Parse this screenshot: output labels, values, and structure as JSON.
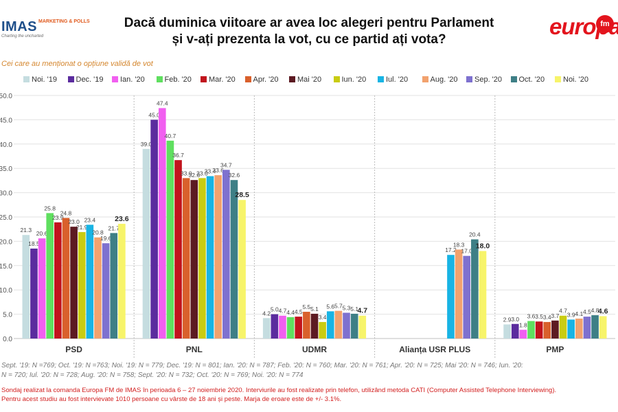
{
  "header": {
    "title_line1": "Dacă duminica viitoare ar avea loc alegeri pentru Parlament",
    "title_line2": "și v-ați prezenta la vot, cu ce partid ați vota?",
    "logo_left": "IMAS",
    "logo_left_sub": "MARKETING & POLLS",
    "logo_left_tagline": "Charting the uncharted",
    "logo_right": "europa",
    "logo_right_badge": "fm"
  },
  "subtitle": "Cei care au menționat o opțiune validă de vot",
  "footnote_lines": [
    "Sept. '19: N =769; Oct. '19: N =763; Noi. '19: N = 779; Dec. '19: N = 801; Ian. '20: N = 787; Feb. '20: N = 760; Mar. '20: N = 761; Apr. '20: N = 725; Mai '20: N = 746; Iun. '20:",
    "N = 720; Iul. '20: N = 728; Aug. '20: N = 758; Sept. '20: N = 732; Oct. '20: N = 769; Noi. '20: N = 774"
  ],
  "source_lines": [
    "Sondaj realizat la comanda Europa FM de IMAS în perioada  6 – 27 noiembrie 2020. Interviurile au fost realizate prin telefon, utilizând metoda CATI (Computer Assisted Telephone Interviewing).",
    "Pentru acest studiu au fost intervievate 1010 persoane cu vârste de 18 ani și peste. Marja de eroare este de +/- 3.1%."
  ],
  "chart_data": {
    "type": "bar",
    "categories": [
      "PSD",
      "PNL",
      "UDMR",
      "Alianța USR PLUS",
      "PMP"
    ],
    "ylim": [
      0,
      50
    ],
    "yticks": [
      "0.0",
      "5.0",
      "10.0",
      "15.0",
      "20.0",
      "25.0",
      "30.0",
      "35.0",
      "40.0",
      "45.0",
      "50.0"
    ],
    "grid": true,
    "legend_position": "top",
    "series": [
      {
        "name": "Noi. '19",
        "color": "#c5dde0",
        "values": [
          21.3,
          39.0,
          4.2,
          null,
          2.9
        ]
      },
      {
        "name": "Dec. '19",
        "color": "#5b2c9e",
        "values": [
          18.5,
          45.0,
          5.0,
          null,
          3.0
        ]
      },
      {
        "name": "Ian. '20",
        "color": "#f15ff0",
        "values": [
          20.6,
          47.4,
          4.7,
          null,
          1.8
        ]
      },
      {
        "name": "Feb. '20",
        "color": "#5fdf5f",
        "values": [
          25.8,
          40.7,
          4.4,
          null,
          3.6
        ]
      },
      {
        "name": "Mar. '20",
        "color": "#c1141d",
        "values": [
          23.9,
          36.7,
          4.5,
          null,
          3.5
        ]
      },
      {
        "name": "Apr. '20",
        "color": "#d9602c",
        "values": [
          24.8,
          33.0,
          5.5,
          null,
          3.4
        ]
      },
      {
        "name": "Mai '20",
        "color": "#5c1a22",
        "values": [
          23.0,
          32.6,
          5.1,
          null,
          3.7
        ]
      },
      {
        "name": "Iun. '20",
        "color": "#c9cc12",
        "values": [
          21.9,
          33.0,
          3.4,
          null,
          4.7
        ]
      },
      {
        "name": "Iul. '20",
        "color": "#18b4e4",
        "values": [
          23.4,
          33.4,
          5.6,
          17.2,
          3.9
        ]
      },
      {
        "name": "Aug. '20",
        "color": "#f2a26e",
        "values": [
          20.8,
          33.6,
          5.7,
          18.3,
          4.1
        ]
      },
      {
        "name": "Sep. '20",
        "color": "#7e71cf",
        "values": [
          19.6,
          34.7,
          5.3,
          17.0,
          4.5
        ]
      },
      {
        "name": "Oct. '20",
        "color": "#3e7f86",
        "values": [
          21.7,
          32.6,
          5.1,
          20.4,
          4.8
        ]
      },
      {
        "name": "Noi. '20",
        "color": "#f7f46a",
        "values": [
          23.6,
          28.5,
          4.7,
          18.0,
          4.6
        ]
      }
    ],
    "labels": [
      [
        "21.3",
        "39.0",
        "4.2",
        "",
        "2.9"
      ],
      [
        "18.5",
        "45.0",
        "5.0",
        "",
        "3.0"
      ],
      [
        "20.6",
        "47.4",
        "4.7",
        "",
        "1.8"
      ],
      [
        "25.8",
        "40.7",
        "4.4",
        "",
        "3.6"
      ],
      [
        "23.9",
        "36.7",
        "4.5",
        "",
        "3.5"
      ],
      [
        "24.8",
        "33.0",
        "5.5",
        "",
        "3.4"
      ],
      [
        "23.0",
        "32.6",
        "5.1",
        "",
        "3.7"
      ],
      [
        "21.9",
        "33.0",
        "3.4",
        "",
        "4.7"
      ],
      [
        "23.4",
        "33.4",
        "5.6",
        "17.2",
        "3.9"
      ],
      [
        "20.8",
        "33.6",
        "5.7",
        "18.3",
        "4.1"
      ],
      [
        "19.6",
        "34.7",
        "5.3",
        "17.0",
        "4.5"
      ],
      [
        "21.7",
        "32.6",
        "5.1",
        "20.4",
        "4.8"
      ],
      [
        "23.6",
        "28.5",
        "4.7",
        "18.0",
        "4.6"
      ]
    ]
  }
}
